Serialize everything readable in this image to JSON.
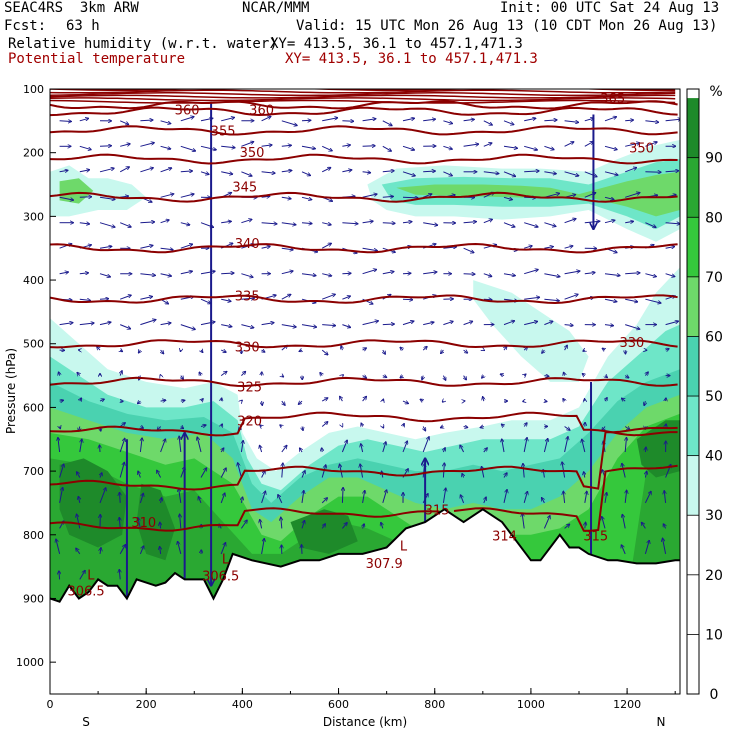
{
  "header": {
    "model": "SEAC4RS  3km ARW",
    "center": "NCAR/MMM",
    "init": "Init: 00 UTC Sat 24 Aug 13",
    "fcst_label": "Fcst:",
    "fcst_value": "63 h",
    "valid": "Valid: 15 UTC Mon 26 Aug 13 (10 CDT Mon 26 Aug 13)",
    "field1": "Relative humidity (w.r.t. water)",
    "field1_xy": "XY= 413.5, 36.1 to 457.1,471.3",
    "field2": "Potential temperature",
    "field2_xy": "XY= 413.5, 36.1 to 457.1,471.3"
  },
  "chart_data": {
    "type": "heatmap",
    "xlabel": "Distance (km)",
    "ylabel": "Pressure (hPa)",
    "xlim": [
      0,
      1310
    ],
    "ylim": [
      1050,
      100
    ],
    "x_ticks": [
      "0",
      "200",
      "400",
      "600",
      "800",
      "1000",
      "1200"
    ],
    "y_ticks": [
      "100",
      "200",
      "300",
      "400",
      "500",
      "600",
      "700",
      "800",
      "900",
      "1000"
    ],
    "x_end_labels": {
      "left": "S",
      "right": "N"
    },
    "colorbar": {
      "unit": "%",
      "ticks": [
        "90",
        "80",
        "70",
        "60",
        "50",
        "40",
        "30",
        "20",
        "10",
        "0"
      ],
      "bands": [
        {
          "range": [
            90,
            100
          ],
          "color": "#1e8a2a"
        },
        {
          "range": [
            80,
            90
          ],
          "color": "#2aa832"
        },
        {
          "range": [
            70,
            80
          ],
          "color": "#35c83c"
        },
        {
          "range": [
            60,
            70
          ],
          "color": "#6ed96a"
        },
        {
          "range": [
            50,
            60
          ],
          "color": "#4ad2b0"
        },
        {
          "range": [
            40,
            50
          ],
          "color": "#6ee6c8"
        },
        {
          "range": [
            30,
            40
          ],
          "color": "#c8f8ee"
        }
      ]
    },
    "theta_color": "#8b0000",
    "wind_color": "#1a1a8c",
    "theta_isentropes": [
      {
        "label": "365",
        "p": 125
      },
      {
        "label": "360",
        "p": 135
      },
      {
        "label": "355",
        "p": 165
      },
      {
        "label": "350",
        "p": 210
      },
      {
        "label": "345",
        "p": 270
      },
      {
        "label": "340",
        "p": 350
      },
      {
        "label": "335",
        "p": 430
      },
      {
        "label": "330",
        "p": 500
      },
      {
        "label": "325",
        "p": 560
      },
      {
        "label": "320",
        "p": 625
      },
      {
        "label": "315",
        "p": 710
      },
      {
        "label": "310",
        "p": 775
      }
    ],
    "contour_labels": [
      {
        "text": "360",
        "x": 285,
        "p": 140
      },
      {
        "text": "360",
        "x": 440,
        "p": 140
      },
      {
        "text": "365",
        "x": 1170,
        "p": 122
      },
      {
        "text": "355",
        "x": 360,
        "p": 173
      },
      {
        "text": "350",
        "x": 420,
        "p": 207
      },
      {
        "text": "350",
        "x": 1230,
        "p": 200
      },
      {
        "text": "345",
        "x": 405,
        "p": 261
      },
      {
        "text": "340",
        "x": 410,
        "p": 350
      },
      {
        "text": "335",
        "x": 410,
        "p": 432
      },
      {
        "text": "330",
        "x": 410,
        "p": 512
      },
      {
        "text": "330",
        "x": 1210,
        "p": 505
      },
      {
        "text": "325",
        "x": 415,
        "p": 575
      },
      {
        "text": "320",
        "x": 415,
        "p": 628
      },
      {
        "text": "315",
        "x": 805,
        "p": 768
      },
      {
        "text": "310",
        "x": 195,
        "p": 788
      },
      {
        "text": "314",
        "x": 945,
        "p": 809
      },
      {
        "text": "315",
        "x": 1135,
        "p": 809
      },
      {
        "text": "306.5",
        "x": 75,
        "p": 895
      },
      {
        "text": "306.5",
        "x": 355,
        "p": 872
      },
      {
        "text": "307.9",
        "x": 695,
        "p": 852
      }
    ],
    "low_markers": [
      {
        "text": "L",
        "x": 85,
        "p": 870
      },
      {
        "text": "L",
        "x": 365,
        "p": 845
      },
      {
        "text": "L",
        "x": 735,
        "p": 825
      }
    ],
    "terrain_surface": [
      [
        0,
        900
      ],
      [
        20,
        905
      ],
      [
        40,
        880
      ],
      [
        60,
        900
      ],
      [
        80,
        890
      ],
      [
        100,
        870
      ],
      [
        120,
        880
      ],
      [
        140,
        880
      ],
      [
        160,
        900
      ],
      [
        180,
        870
      ],
      [
        200,
        875
      ],
      [
        220,
        880
      ],
      [
        240,
        875
      ],
      [
        260,
        860
      ],
      [
        280,
        870
      ],
      [
        300,
        870
      ],
      [
        320,
        870
      ],
      [
        340,
        900
      ],
      [
        360,
        870
      ],
      [
        380,
        830
      ],
      [
        420,
        840
      ],
      [
        480,
        850
      ],
      [
        520,
        840
      ],
      [
        560,
        840
      ],
      [
        600,
        830
      ],
      [
        650,
        830
      ],
      [
        700,
        820
      ],
      [
        740,
        790
      ],
      [
        780,
        780
      ],
      [
        820,
        760
      ],
      [
        860,
        780
      ],
      [
        900,
        760
      ],
      [
        920,
        770
      ],
      [
        940,
        780
      ],
      [
        960,
        800
      ],
      [
        1000,
        840
      ],
      [
        1020,
        840
      ],
      [
        1040,
        820
      ],
      [
        1060,
        800
      ],
      [
        1080,
        820
      ],
      [
        1100,
        820
      ],
      [
        1120,
        830
      ],
      [
        1160,
        840
      ],
      [
        1180,
        840
      ],
      [
        1220,
        845
      ],
      [
        1260,
        845
      ],
      [
        1300,
        840
      ],
      [
        1310,
        840
      ]
    ]
  }
}
